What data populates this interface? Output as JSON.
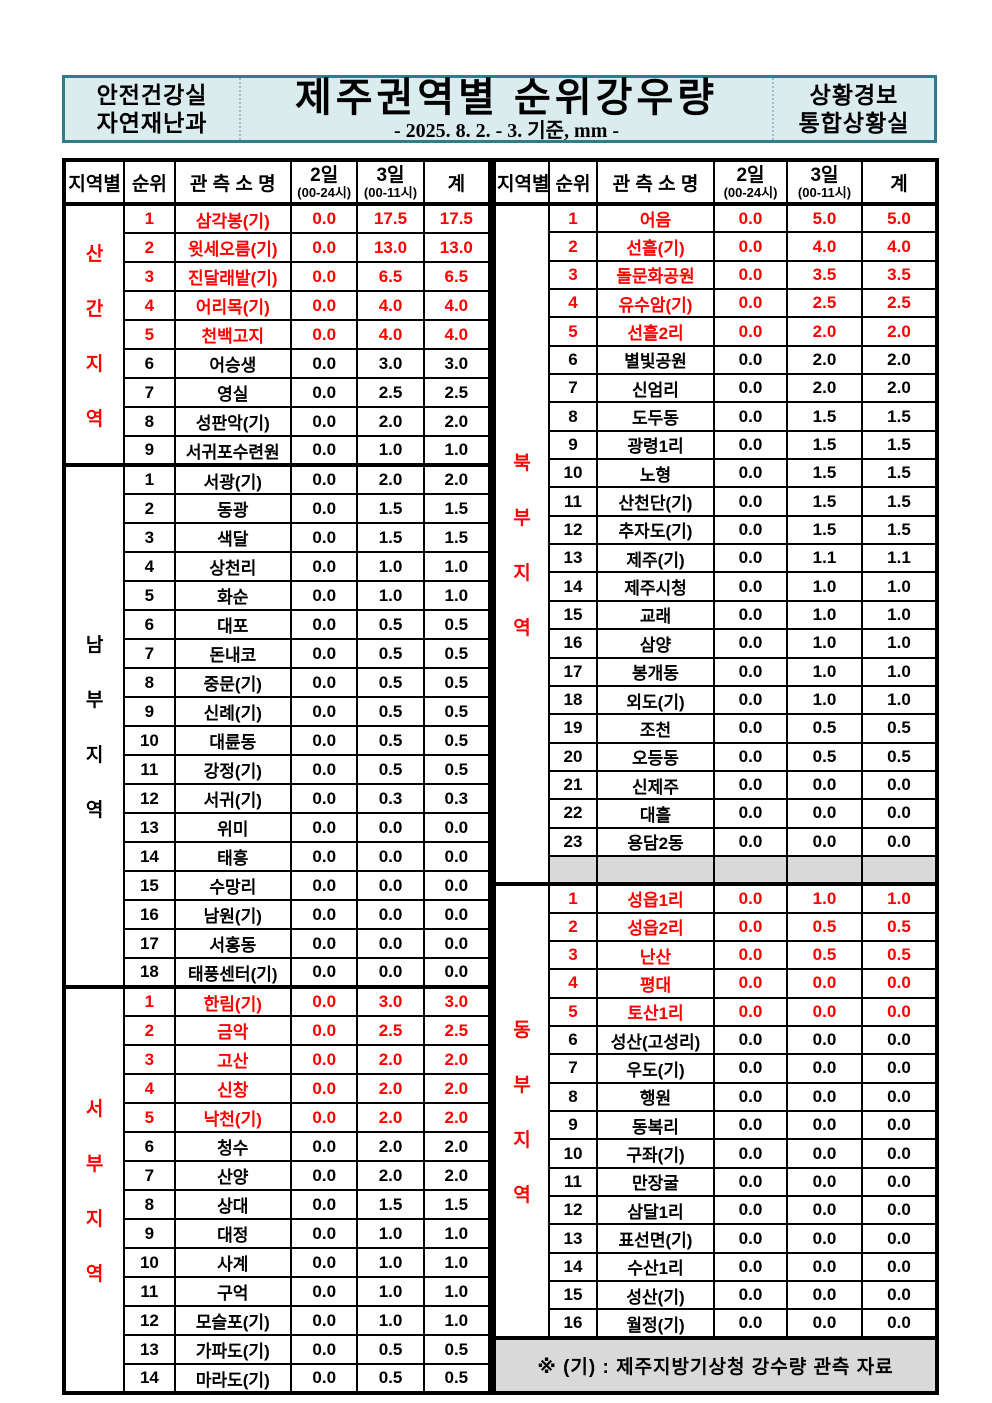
{
  "banner": {
    "dept_line1": "안전건강실",
    "dept_line2": "자연재난과",
    "title": "제주권역별 순위강우량",
    "subtitle": "- 2025. 8. 2. - 3. 기준, mm -",
    "office_line1": "상황경보",
    "office_line2": "통합상황실"
  },
  "table_header": {
    "region": "지역별",
    "rank": "순위",
    "station": "관 측 소 명",
    "day2": "2일",
    "day2_sub": "(00-24시)",
    "day3": "3일",
    "day3_sub": "(00-11시)",
    "total": "계"
  },
  "colors": {
    "highlight_red": "#ff0000",
    "banner_bg": "#dbecee",
    "banner_border": "#2f7c8a",
    "gray_fill": "#d9d9d9"
  },
  "left_table": {
    "sections": [
      {
        "region": "산간지역",
        "region_chars": [
          "산",
          "간",
          "지",
          "역"
        ],
        "rows": [
          {
            "rank": "1",
            "name": "삼각봉(기)",
            "d2": "0.0",
            "d3": "17.5",
            "sum": "17.5",
            "red": true
          },
          {
            "rank": "2",
            "name": "윗세오름(기)",
            "d2": "0.0",
            "d3": "13.0",
            "sum": "13.0",
            "red": true
          },
          {
            "rank": "3",
            "name": "진달래밭(기)",
            "d2": "0.0",
            "d3": "6.5",
            "sum": "6.5",
            "red": true
          },
          {
            "rank": "4",
            "name": "어리목(기)",
            "d2": "0.0",
            "d3": "4.0",
            "sum": "4.0",
            "red": true
          },
          {
            "rank": "5",
            "name": "천백고지",
            "d2": "0.0",
            "d3": "4.0",
            "sum": "4.0",
            "red": true
          },
          {
            "rank": "6",
            "name": "어승생",
            "d2": "0.0",
            "d3": "3.0",
            "sum": "3.0",
            "red": false
          },
          {
            "rank": "7",
            "name": "영실",
            "d2": "0.0",
            "d3": "2.5",
            "sum": "2.5",
            "red": false
          },
          {
            "rank": "8",
            "name": "성판악(기)",
            "d2": "0.0",
            "d3": "2.0",
            "sum": "2.0",
            "red": false
          },
          {
            "rank": "9",
            "name": "서귀포수련원",
            "d2": "0.0",
            "d3": "1.0",
            "sum": "1.0",
            "red": false
          }
        ]
      },
      {
        "region": "남부지역",
        "region_chars": [
          "남",
          "부",
          "지",
          "역"
        ],
        "rows": [
          {
            "rank": "1",
            "name": "서광(기)",
            "d2": "0.0",
            "d3": "2.0",
            "sum": "2.0",
            "red": false
          },
          {
            "rank": "2",
            "name": "동광",
            "d2": "0.0",
            "d3": "1.5",
            "sum": "1.5",
            "red": false
          },
          {
            "rank": "3",
            "name": "색달",
            "d2": "0.0",
            "d3": "1.5",
            "sum": "1.5",
            "red": false
          },
          {
            "rank": "4",
            "name": "상천리",
            "d2": "0.0",
            "d3": "1.0",
            "sum": "1.0",
            "red": false
          },
          {
            "rank": "5",
            "name": "화순",
            "d2": "0.0",
            "d3": "1.0",
            "sum": "1.0",
            "red": false
          },
          {
            "rank": "6",
            "name": "대포",
            "d2": "0.0",
            "d3": "0.5",
            "sum": "0.5",
            "red": false
          },
          {
            "rank": "7",
            "name": "돈내코",
            "d2": "0.0",
            "d3": "0.5",
            "sum": "0.5",
            "red": false
          },
          {
            "rank": "8",
            "name": "중문(기)",
            "d2": "0.0",
            "d3": "0.5",
            "sum": "0.5",
            "red": false
          },
          {
            "rank": "9",
            "name": "신례(기)",
            "d2": "0.0",
            "d3": "0.5",
            "sum": "0.5",
            "red": false
          },
          {
            "rank": "10",
            "name": "대륜동",
            "d2": "0.0",
            "d3": "0.5",
            "sum": "0.5",
            "red": false
          },
          {
            "rank": "11",
            "name": "강정(기)",
            "d2": "0.0",
            "d3": "0.5",
            "sum": "0.5",
            "red": false
          },
          {
            "rank": "12",
            "name": "서귀(기)",
            "d2": "0.0",
            "d3": "0.3",
            "sum": "0.3",
            "red": false
          },
          {
            "rank": "13",
            "name": "위미",
            "d2": "0.0",
            "d3": "0.0",
            "sum": "0.0",
            "red": false
          },
          {
            "rank": "14",
            "name": "태흥",
            "d2": "0.0",
            "d3": "0.0",
            "sum": "0.0",
            "red": false
          },
          {
            "rank": "15",
            "name": "수망리",
            "d2": "0.0",
            "d3": "0.0",
            "sum": "0.0",
            "red": false
          },
          {
            "rank": "16",
            "name": "남원(기)",
            "d2": "0.0",
            "d3": "0.0",
            "sum": "0.0",
            "red": false
          },
          {
            "rank": "17",
            "name": "서홍동",
            "d2": "0.0",
            "d3": "0.0",
            "sum": "0.0",
            "red": false
          },
          {
            "rank": "18",
            "name": "태풍센터(기)",
            "d2": "0.0",
            "d3": "0.0",
            "sum": "0.0",
            "red": false
          }
        ]
      },
      {
        "region": "서부지역",
        "region_chars": [
          "서",
          "부",
          "지",
          "역"
        ],
        "rows": [
          {
            "rank": "1",
            "name": "한림(기)",
            "d2": "0.0",
            "d3": "3.0",
            "sum": "3.0",
            "red": true
          },
          {
            "rank": "2",
            "name": "금악",
            "d2": "0.0",
            "d3": "2.5",
            "sum": "2.5",
            "red": true
          },
          {
            "rank": "3",
            "name": "고산",
            "d2": "0.0",
            "d3": "2.0",
            "sum": "2.0",
            "red": true
          },
          {
            "rank": "4",
            "name": "신창",
            "d2": "0.0",
            "d3": "2.0",
            "sum": "2.0",
            "red": true
          },
          {
            "rank": "5",
            "name": "낙천(기)",
            "d2": "0.0",
            "d3": "2.0",
            "sum": "2.0",
            "red": true
          },
          {
            "rank": "6",
            "name": "청수",
            "d2": "0.0",
            "d3": "2.0",
            "sum": "2.0",
            "red": false
          },
          {
            "rank": "7",
            "name": "산양",
            "d2": "0.0",
            "d3": "2.0",
            "sum": "2.0",
            "red": false
          },
          {
            "rank": "8",
            "name": "상대",
            "d2": "0.0",
            "d3": "1.5",
            "sum": "1.5",
            "red": false
          },
          {
            "rank": "9",
            "name": "대정",
            "d2": "0.0",
            "d3": "1.0",
            "sum": "1.0",
            "red": false
          },
          {
            "rank": "10",
            "name": "사계",
            "d2": "0.0",
            "d3": "1.0",
            "sum": "1.0",
            "red": false
          },
          {
            "rank": "11",
            "name": "구억",
            "d2": "0.0",
            "d3": "1.0",
            "sum": "1.0",
            "red": false
          },
          {
            "rank": "12",
            "name": "모슬포(기)",
            "d2": "0.0",
            "d3": "1.0",
            "sum": "1.0",
            "red": false
          },
          {
            "rank": "13",
            "name": "가파도(기)",
            "d2": "0.0",
            "d3": "0.5",
            "sum": "0.5",
            "red": false
          },
          {
            "rank": "14",
            "name": "마라도(기)",
            "d2": "0.0",
            "d3": "0.5",
            "sum": "0.5",
            "red": false
          }
        ]
      }
    ]
  },
  "right_table": {
    "sections": [
      {
        "region": "북부지역",
        "region_chars": [
          "북",
          "부",
          "지",
          "역"
        ],
        "empty_row": true,
        "rows": [
          {
            "rank": "1",
            "name": "어음",
            "d2": "0.0",
            "d3": "5.0",
            "sum": "5.0",
            "red": true
          },
          {
            "rank": "2",
            "name": "선흘(기)",
            "d2": "0.0",
            "d3": "4.0",
            "sum": "4.0",
            "red": true
          },
          {
            "rank": "3",
            "name": "돌문화공원",
            "d2": "0.0",
            "d3": "3.5",
            "sum": "3.5",
            "red": true
          },
          {
            "rank": "4",
            "name": "유수암(기)",
            "d2": "0.0",
            "d3": "2.5",
            "sum": "2.5",
            "red": true
          },
          {
            "rank": "5",
            "name": "선흘2리",
            "d2": "0.0",
            "d3": "2.0",
            "sum": "2.0",
            "red": true
          },
          {
            "rank": "6",
            "name": "별빛공원",
            "d2": "0.0",
            "d3": "2.0",
            "sum": "2.0",
            "red": false
          },
          {
            "rank": "7",
            "name": "신엄리",
            "d2": "0.0",
            "d3": "2.0",
            "sum": "2.0",
            "red": false
          },
          {
            "rank": "8",
            "name": "도두동",
            "d2": "0.0",
            "d3": "1.5",
            "sum": "1.5",
            "red": false
          },
          {
            "rank": "9",
            "name": "광령1리",
            "d2": "0.0",
            "d3": "1.5",
            "sum": "1.5",
            "red": false
          },
          {
            "rank": "10",
            "name": "노형",
            "d2": "0.0",
            "d3": "1.5",
            "sum": "1.5",
            "red": false
          },
          {
            "rank": "11",
            "name": "산천단(기)",
            "d2": "0.0",
            "d3": "1.5",
            "sum": "1.5",
            "red": false
          },
          {
            "rank": "12",
            "name": "추자도(기)",
            "d2": "0.0",
            "d3": "1.5",
            "sum": "1.5",
            "red": false
          },
          {
            "rank": "13",
            "name": "제주(기)",
            "d2": "0.0",
            "d3": "1.1",
            "sum": "1.1",
            "red": false
          },
          {
            "rank": "14",
            "name": "제주시청",
            "d2": "0.0",
            "d3": "1.0",
            "sum": "1.0",
            "red": false
          },
          {
            "rank": "15",
            "name": "교래",
            "d2": "0.0",
            "d3": "1.0",
            "sum": "1.0",
            "red": false
          },
          {
            "rank": "16",
            "name": "삼양",
            "d2": "0.0",
            "d3": "1.0",
            "sum": "1.0",
            "red": false
          },
          {
            "rank": "17",
            "name": "봉개동",
            "d2": "0.0",
            "d3": "1.0",
            "sum": "1.0",
            "red": false
          },
          {
            "rank": "18",
            "name": "외도(기)",
            "d2": "0.0",
            "d3": "1.0",
            "sum": "1.0",
            "red": false
          },
          {
            "rank": "19",
            "name": "조천",
            "d2": "0.0",
            "d3": "0.5",
            "sum": "0.5",
            "red": false
          },
          {
            "rank": "20",
            "name": "오등동",
            "d2": "0.0",
            "d3": "0.5",
            "sum": "0.5",
            "red": false
          },
          {
            "rank": "21",
            "name": "신제주",
            "d2": "0.0",
            "d3": "0.0",
            "sum": "0.0",
            "red": false
          },
          {
            "rank": "22",
            "name": "대흘",
            "d2": "0.0",
            "d3": "0.0",
            "sum": "0.0",
            "red": false
          },
          {
            "rank": "23",
            "name": "용담2동",
            "d2": "0.0",
            "d3": "0.0",
            "sum": "0.0",
            "red": false
          }
        ]
      },
      {
        "region": "동부지역",
        "region_chars": [
          "동",
          "부",
          "지",
          "역"
        ],
        "empty_row": false,
        "rows": [
          {
            "rank": "1",
            "name": "성읍1리",
            "d2": "0.0",
            "d3": "1.0",
            "sum": "1.0",
            "red": true
          },
          {
            "rank": "2",
            "name": "성읍2리",
            "d2": "0.0",
            "d3": "0.5",
            "sum": "0.5",
            "red": true
          },
          {
            "rank": "3",
            "name": "난산",
            "d2": "0.0",
            "d3": "0.5",
            "sum": "0.5",
            "red": true
          },
          {
            "rank": "4",
            "name": "평대",
            "d2": "0.0",
            "d3": "0.0",
            "sum": "0.0",
            "red": true
          },
          {
            "rank": "5",
            "name": "토산1리",
            "d2": "0.0",
            "d3": "0.0",
            "sum": "0.0",
            "red": true
          },
          {
            "rank": "6",
            "name": "성산(고성리)",
            "d2": "0.0",
            "d3": "0.0",
            "sum": "0.0",
            "red": false
          },
          {
            "rank": "7",
            "name": "우도(기)",
            "d2": "0.0",
            "d3": "0.0",
            "sum": "0.0",
            "red": false
          },
          {
            "rank": "8",
            "name": "행원",
            "d2": "0.0",
            "d3": "0.0",
            "sum": "0.0",
            "red": false
          },
          {
            "rank": "9",
            "name": "동복리",
            "d2": "0.0",
            "d3": "0.0",
            "sum": "0.0",
            "red": false
          },
          {
            "rank": "10",
            "name": "구좌(기)",
            "d2": "0.0",
            "d3": "0.0",
            "sum": "0.0",
            "red": false
          },
          {
            "rank": "11",
            "name": "만장굴",
            "d2": "0.0",
            "d3": "0.0",
            "sum": "0.0",
            "red": false
          },
          {
            "rank": "12",
            "name": "삼달1리",
            "d2": "0.0",
            "d3": "0.0",
            "sum": "0.0",
            "red": false
          },
          {
            "rank": "13",
            "name": "표선면(기)",
            "d2": "0.0",
            "d3": "0.0",
            "sum": "0.0",
            "red": false
          },
          {
            "rank": "14",
            "name": "수산1리",
            "d2": "0.0",
            "d3": "0.0",
            "sum": "0.0",
            "red": false
          },
          {
            "rank": "15",
            "name": "성산(기)",
            "d2": "0.0",
            "d3": "0.0",
            "sum": "0.0",
            "red": false
          },
          {
            "rank": "16",
            "name": "월정(기)",
            "d2": "0.0",
            "d3": "0.0",
            "sum": "0.0",
            "red": false
          }
        ]
      }
    ],
    "footer_note": "※ (기) : 제주지방기상청 강수량 관측 자료"
  }
}
